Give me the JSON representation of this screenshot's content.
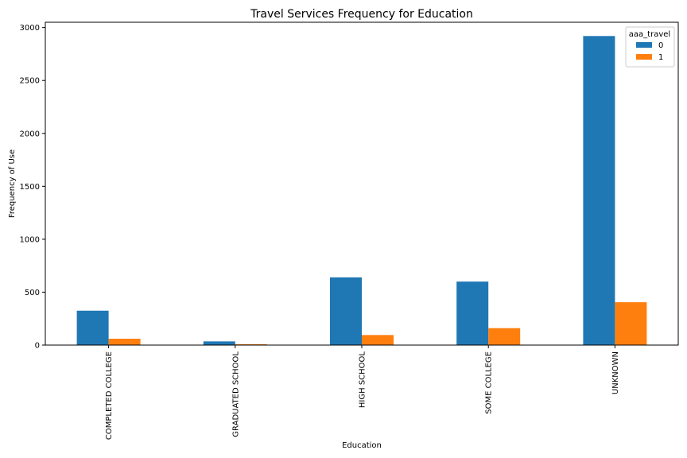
{
  "chart_data": {
    "type": "bar",
    "title": "Travel Services Frequency for Education",
    "xlabel": "Education",
    "ylabel": "Frequency of Use",
    "categories": [
      "COMPLETED COLLEGE",
      "GRADUATED SCHOOL",
      "HIGH SCHOOL",
      "SOME COLLEGE",
      "UNKNOWN"
    ],
    "series": [
      {
        "name": "0",
        "color": "#1f77b4",
        "values": [
          325,
          35,
          640,
          600,
          2920
        ]
      },
      {
        "name": "1",
        "color": "#ff7f0e",
        "values": [
          60,
          8,
          95,
          160,
          405
        ]
      }
    ],
    "legend_title": "aaa_travel",
    "legend_position": "top-right",
    "ylim": [
      0,
      3050
    ],
    "yticks": [
      0,
      500,
      1000,
      1500,
      2000,
      2500,
      3000
    ],
    "grid": false
  }
}
